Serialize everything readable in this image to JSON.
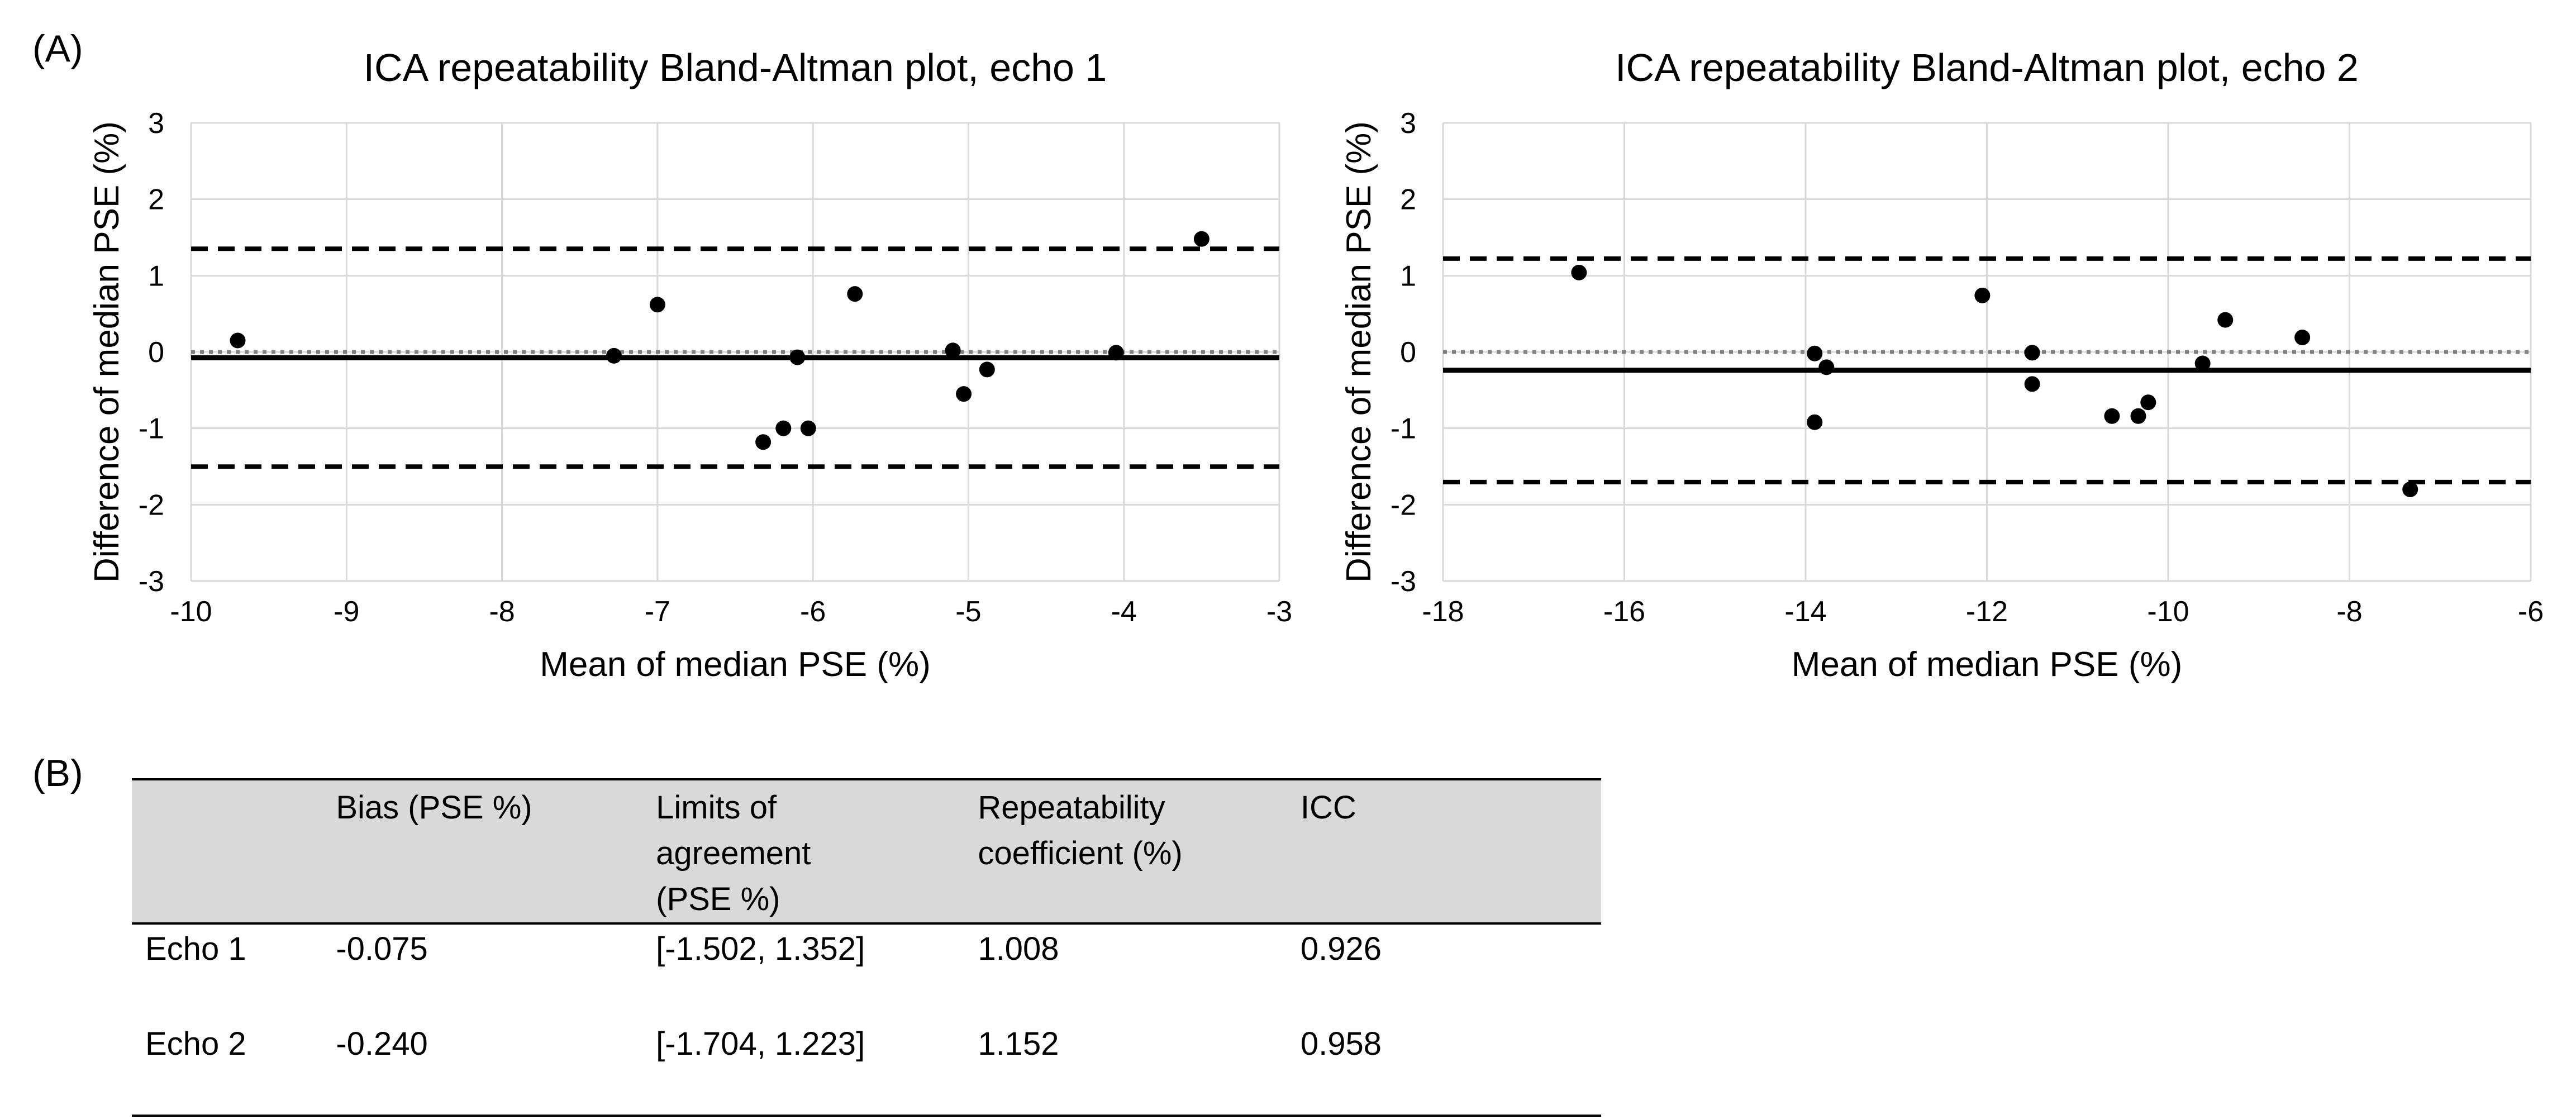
{
  "figure": {
    "panel_a_label": "(A)",
    "panel_b_label": "(B)"
  },
  "chart_data": [
    {
      "type": "scatter",
      "title": "ICA repeatability Bland-Altman plot, echo 1",
      "xlabel": "Mean of median PSE (%)",
      "ylabel": "Difference of median PSE (%)",
      "xlim": [
        -10,
        -3
      ],
      "ylim": [
        -3,
        3
      ],
      "xticks": [
        -10,
        -9,
        -8,
        -7,
        -6,
        -5,
        -4,
        -3
      ],
      "yticks": [
        -3,
        -2,
        -1,
        0,
        1,
        2,
        3
      ],
      "grid": true,
      "bias": -0.075,
      "loa": [
        -1.502,
        1.352
      ],
      "zero_line": 0,
      "points": [
        {
          "x": -9.7,
          "y": 0.15
        },
        {
          "x": -7.28,
          "y": -0.05
        },
        {
          "x": -7.0,
          "y": 0.62
        },
        {
          "x": -6.32,
          "y": -1.18
        },
        {
          "x": -6.19,
          "y": -1.0
        },
        {
          "x": -6.1,
          "y": -0.07
        },
        {
          "x": -6.03,
          "y": -1.0
        },
        {
          "x": -5.73,
          "y": 0.76
        },
        {
          "x": -5.1,
          "y": 0.02
        },
        {
          "x": -5.03,
          "y": -0.55
        },
        {
          "x": -4.88,
          "y": -0.23
        },
        {
          "x": -4.05,
          "y": -0.01
        },
        {
          "x": -3.5,
          "y": 1.48
        }
      ]
    },
    {
      "type": "scatter",
      "title": "ICA repeatability Bland-Altman plot, echo 2",
      "xlabel": "Mean of median PSE (%)",
      "ylabel": "Difference of median PSE (%)",
      "xlim": [
        -18,
        -6
      ],
      "ylim": [
        -3,
        3
      ],
      "xticks": [
        -18,
        -16,
        -14,
        -12,
        -10,
        -8,
        -6
      ],
      "yticks": [
        -3,
        -2,
        -1,
        0,
        1,
        2,
        3
      ],
      "grid": true,
      "bias": -0.24,
      "loa": [
        -1.704,
        1.223
      ],
      "zero_line": 0,
      "points": [
        {
          "x": -16.5,
          "y": 1.04
        },
        {
          "x": -13.9,
          "y": -0.02
        },
        {
          "x": -13.9,
          "y": -0.92
        },
        {
          "x": -13.77,
          "y": -0.2
        },
        {
          "x": -12.05,
          "y": 0.74
        },
        {
          "x": -11.5,
          "y": -0.01
        },
        {
          "x": -11.5,
          "y": -0.42
        },
        {
          "x": -10.62,
          "y": -0.84
        },
        {
          "x": -10.33,
          "y": -0.84
        },
        {
          "x": -10.22,
          "y": -0.66
        },
        {
          "x": -9.62,
          "y": -0.15
        },
        {
          "x": -9.37,
          "y": 0.42
        },
        {
          "x": -8.52,
          "y": 0.19
        },
        {
          "x": -7.33,
          "y": -1.8
        }
      ]
    },
    {
      "type": "table",
      "headers": [
        "",
        "Bias (PSE %)",
        "Limits of agreement (PSE %)",
        "Repeatability coefficient (%)",
        "ICC"
      ],
      "rows": [
        [
          "Echo 1",
          "-0.075",
          "[-1.502, 1.352]",
          "1.008",
          "0.926"
        ],
        [
          "Echo 2",
          "-0.240",
          "[-1.704, 1.223]",
          "1.152",
          "0.958"
        ]
      ]
    }
  ]
}
